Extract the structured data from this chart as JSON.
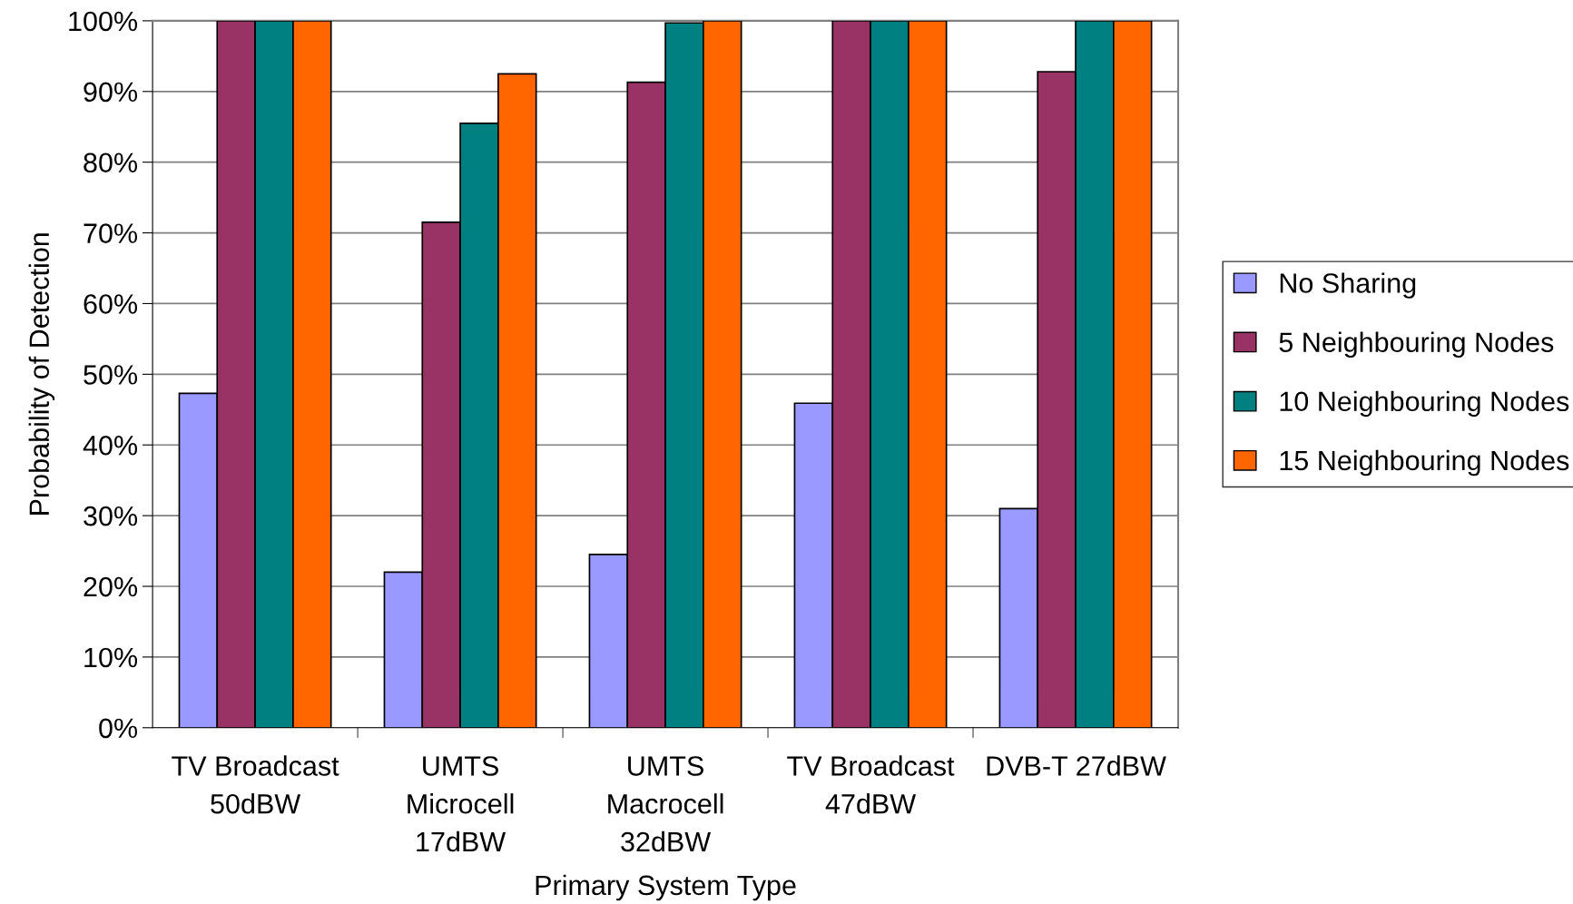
{
  "chart_data": {
    "type": "bar",
    "xlabel": "Primary System Type",
    "ylabel": "Probability of Detection",
    "categories": [
      "TV Broadcast\n50dBW",
      "UMTS\nMicrocell\n17dBW",
      "UMTS\nMacrocell\n32dBW",
      "TV Broadcast\n47dBW",
      "DVB-T 27dBW"
    ],
    "series": [
      {
        "name": "No Sharing",
        "color": "#9999ff",
        "values": [
          47.3,
          22.0,
          24.5,
          45.9,
          31.0
        ]
      },
      {
        "name": "5 Neighbouring Nodes",
        "color": "#993366",
        "values": [
          100,
          71.5,
          91.3,
          100,
          92.8
        ]
      },
      {
        "name": "10 Neighbouring Nodes",
        "color": "#008080",
        "values": [
          100,
          85.5,
          99.7,
          100,
          100
        ]
      },
      {
        "name": "15 Neighbouring Nodes",
        "color": "#ff6600",
        "values": [
          100,
          92.5,
          100,
          100,
          100
        ]
      }
    ],
    "ylim": [
      0,
      100
    ],
    "yticks": [
      {
        "value": 0,
        "label": "0%"
      },
      {
        "value": 10,
        "label": "10%"
      },
      {
        "value": 20,
        "label": "20%"
      },
      {
        "value": 30,
        "label": "30%"
      },
      {
        "value": 40,
        "label": "40%"
      },
      {
        "value": 50,
        "label": "50%"
      },
      {
        "value": 60,
        "label": "60%"
      },
      {
        "value": 70,
        "label": "70%"
      },
      {
        "value": 80,
        "label": "80%"
      },
      {
        "value": 90,
        "label": "90%"
      },
      {
        "value": 100,
        "label": "100%"
      }
    ],
    "grid": "y",
    "legend": "right"
  }
}
